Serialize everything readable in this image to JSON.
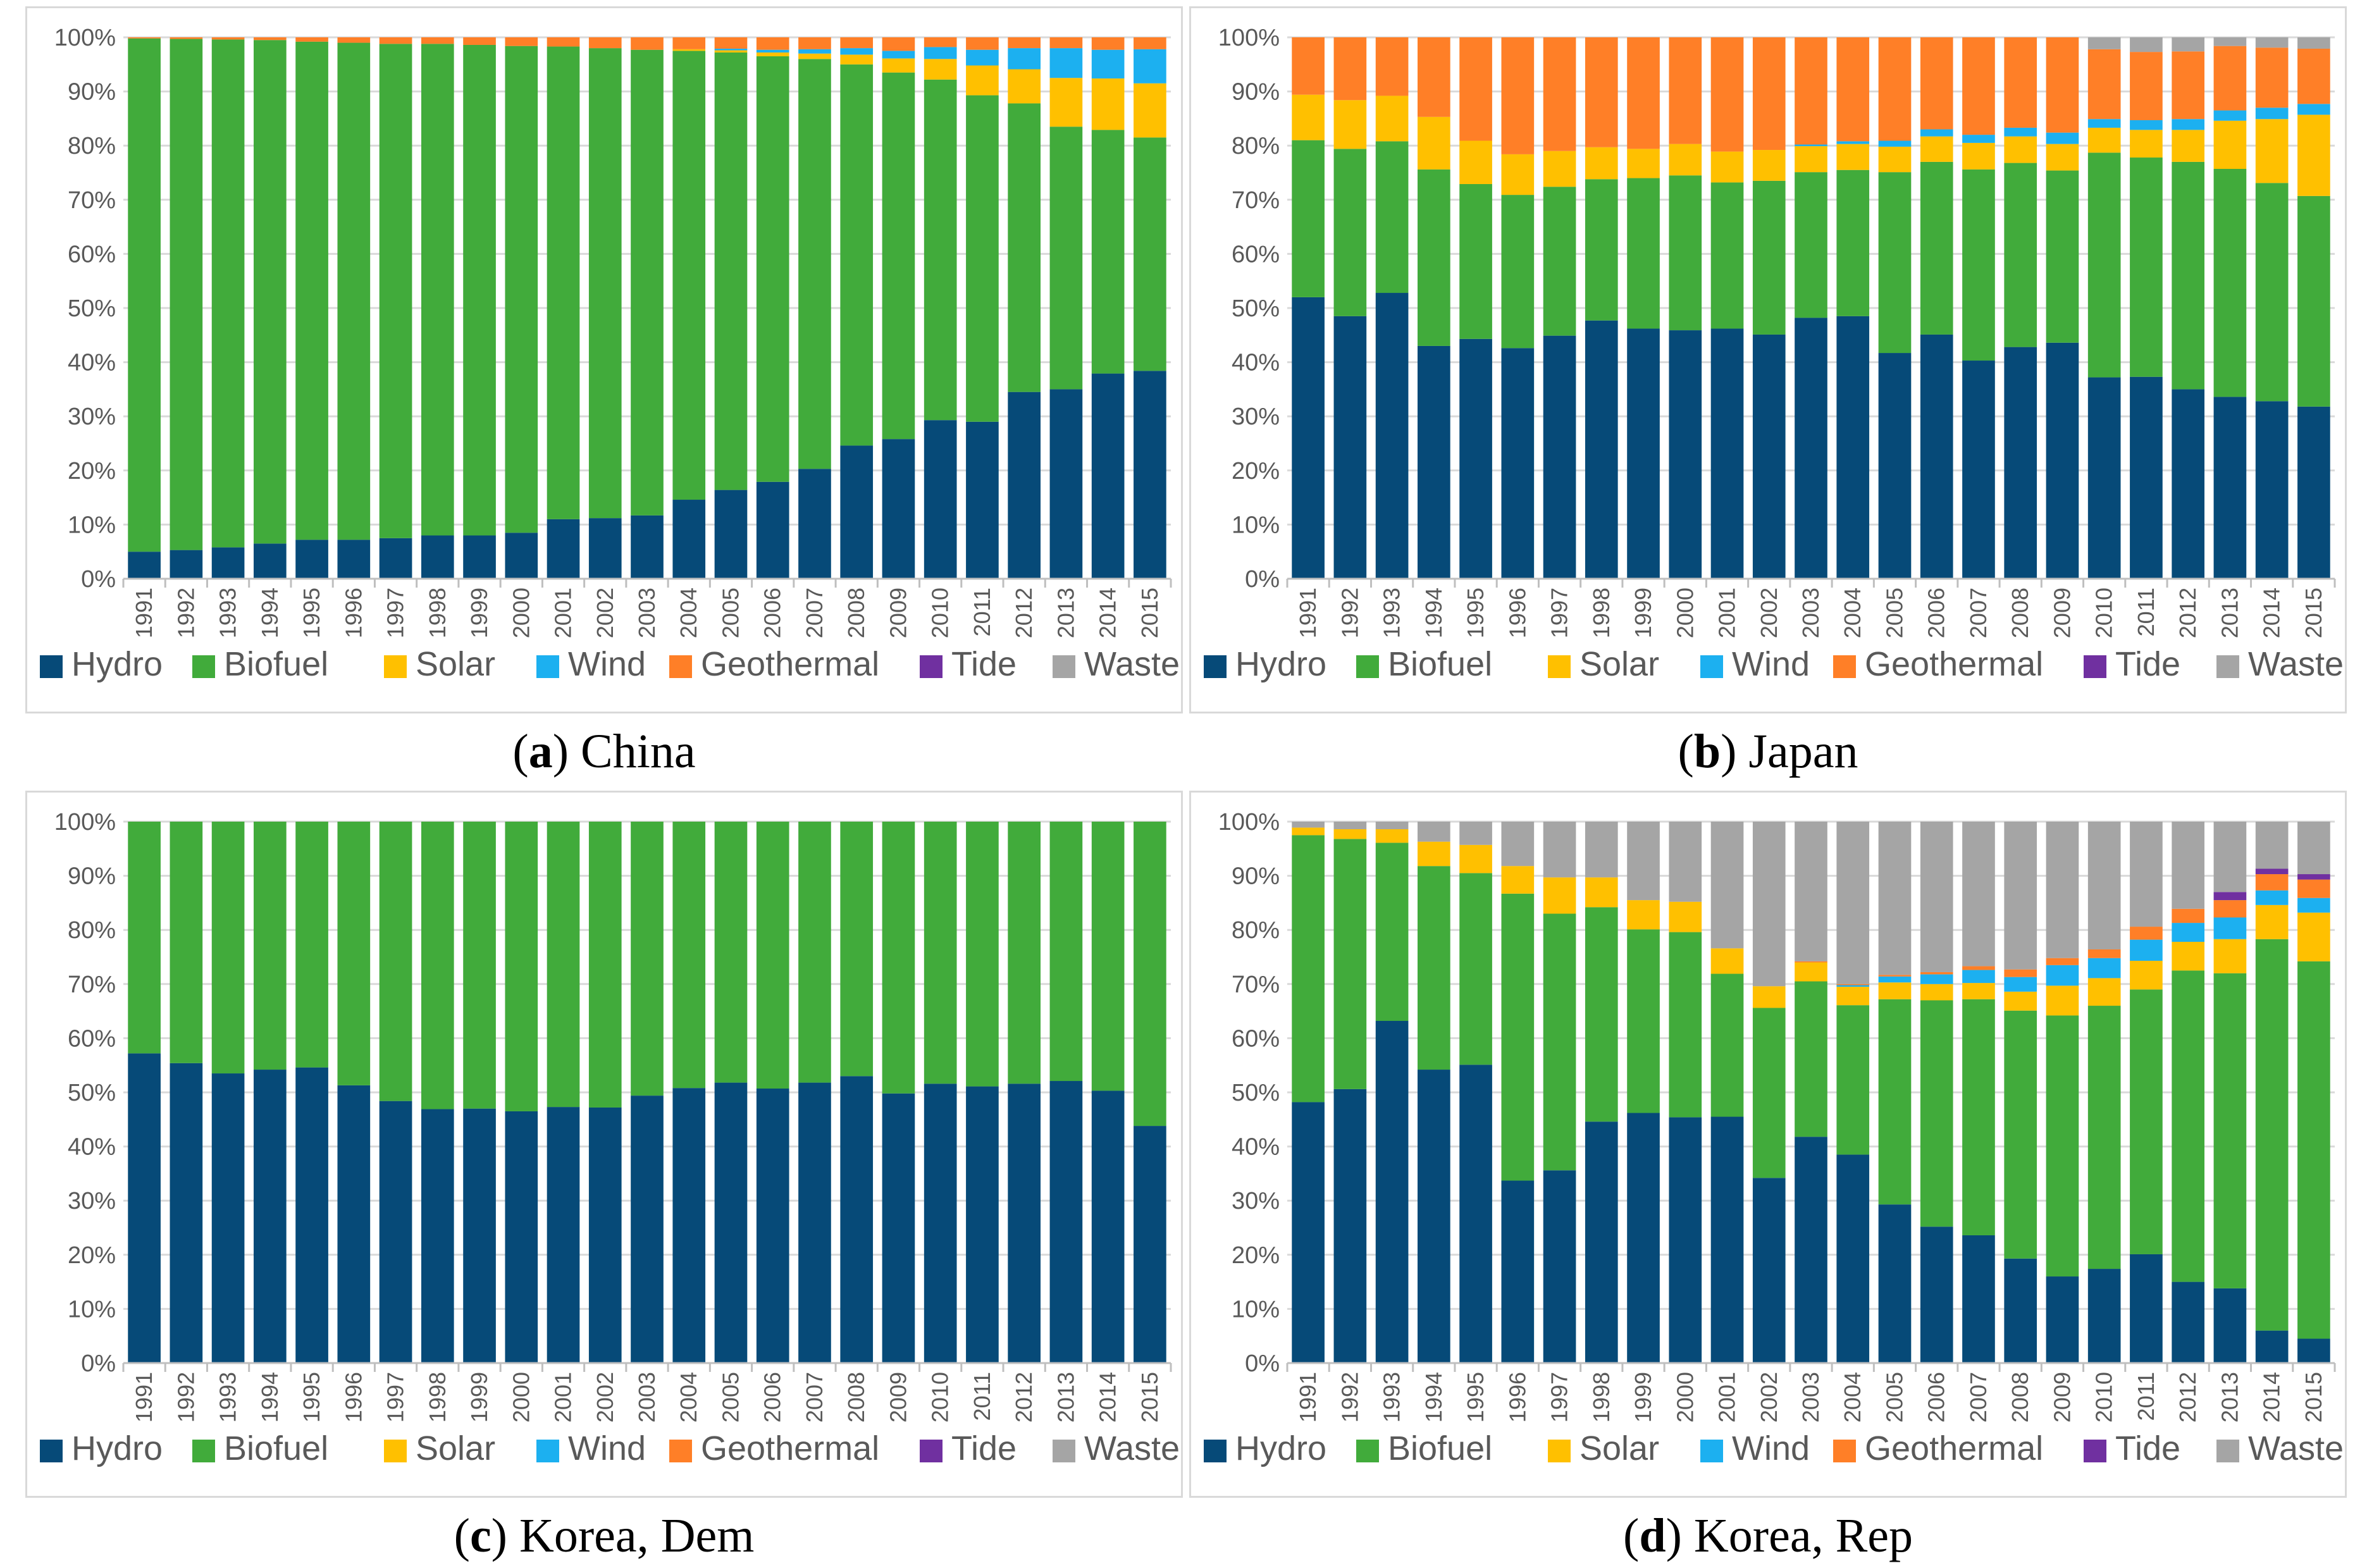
{
  "chart_data": [
    {
      "type": "bar",
      "stacked": true,
      "percent": true,
      "panel_letter": "a",
      "panel_title": "China",
      "categories": [
        "1991",
        "1992",
        "1993",
        "1994",
        "1995",
        "1996",
        "1997",
        "1998",
        "1999",
        "2000",
        "2001",
        "2002",
        "2003",
        "2004",
        "2005",
        "2006",
        "2007",
        "2008",
        "2009",
        "2010",
        "2011",
        "2012",
        "2013",
        "2014",
        "2015"
      ],
      "y_ticks": [
        "0%",
        "10%",
        "20%",
        "30%",
        "40%",
        "50%",
        "60%",
        "70%",
        "80%",
        "90%",
        "100%"
      ],
      "ylim": [
        0,
        100
      ],
      "legend_position": "bottom",
      "series": [
        {
          "name": "Hydro",
          "color": "#064A78",
          "values": [
            5,
            5.3,
            5.8,
            6.5,
            7.2,
            7.2,
            7.5,
            8,
            8,
            8.5,
            11,
            11.2,
            11.7,
            14.6,
            16.4,
            17.9,
            20.3,
            24.6,
            25.8,
            29.3,
            29,
            34.5,
            35,
            37.9,
            38.4
          ]
        },
        {
          "name": "Biofuel",
          "color": "#41AB3B",
          "values": [
            94.8,
            94.4,
            93.8,
            93,
            92,
            91.8,
            91.3,
            90.8,
            90.6,
            89.9,
            87.3,
            86.8,
            86,
            82.9,
            80.8,
            78.6,
            75.7,
            70.4,
            67.7,
            62.9,
            60.3,
            53.3,
            48.5,
            45,
            43.1
          ]
        },
        {
          "name": "Solar",
          "color": "#FFC000",
          "values": [
            0,
            0,
            0,
            0,
            0,
            0,
            0,
            0,
            0,
            0,
            0,
            0,
            0,
            0.3,
            0.4,
            0.7,
            1,
            1.8,
            2.6,
            3.8,
            5.5,
            6.3,
            9,
            9.5,
            10
          ]
        },
        {
          "name": "Wind",
          "color": "#1CB0F0",
          "values": [
            0,
            0,
            0,
            0,
            0,
            0,
            0,
            0,
            0,
            0,
            0,
            0,
            0,
            0,
            0.3,
            0.5,
            0.8,
            1.2,
            1.4,
            2.2,
            2.9,
            3.9,
            5.5,
            5.3,
            6.3
          ]
        },
        {
          "name": "Geothermal",
          "color": "#FF7F27",
          "values": [
            0.2,
            0.3,
            0.4,
            0.5,
            0.8,
            1,
            1.2,
            1.2,
            1.4,
            1.6,
            1.7,
            2,
            2.3,
            2.2,
            2.1,
            2.3,
            2.2,
            2,
            2.5,
            1.8,
            2.3,
            2,
            2,
            2.3,
            2.2
          ]
        },
        {
          "name": "Tide",
          "color": "#7030A0",
          "values": [
            0,
            0,
            0,
            0,
            0,
            0,
            0,
            0,
            0,
            0,
            0,
            0,
            0,
            0,
            0,
            0,
            0,
            0,
            0,
            0,
            0,
            0,
            0,
            0,
            0
          ]
        },
        {
          "name": "Waste",
          "color": "#A5A5A5",
          "values": [
            0,
            0,
            0,
            0,
            0,
            0,
            0,
            0,
            0,
            0,
            0,
            0,
            0,
            0,
            0,
            0,
            0,
            0,
            0,
            0,
            0,
            0,
            0,
            0,
            0
          ]
        }
      ]
    },
    {
      "type": "bar",
      "stacked": true,
      "percent": true,
      "panel_letter": "b",
      "panel_title": "Japan",
      "categories": [
        "1991",
        "1992",
        "1993",
        "1994",
        "1995",
        "1996",
        "1997",
        "1998",
        "1999",
        "2000",
        "2001",
        "2002",
        "2003",
        "2004",
        "2005",
        "2006",
        "2007",
        "2008",
        "2009",
        "2010",
        "2011",
        "2012",
        "2013",
        "2014",
        "2015"
      ],
      "y_ticks": [
        "0%",
        "10%",
        "20%",
        "30%",
        "40%",
        "50%",
        "60%",
        "70%",
        "80%",
        "90%",
        "100%"
      ],
      "ylim": [
        0,
        100
      ],
      "legend_position": "bottom",
      "series": [
        {
          "name": "Hydro",
          "color": "#064A78",
          "values": [
            52,
            48.5,
            52.8,
            43,
            44.3,
            42.6,
            44.9,
            47.7,
            46.2,
            45.9,
            46.2,
            45.1,
            48.2,
            48.5,
            41.7,
            45.1,
            40.3,
            42.8,
            43.6,
            37.2,
            37.3,
            35,
            33.6,
            32.8,
            31.8
          ]
        },
        {
          "name": "Biofuel",
          "color": "#41AB3B",
          "values": [
            29,
            30.9,
            28,
            32.6,
            28.6,
            28.3,
            27.5,
            26.1,
            27.8,
            28.6,
            27,
            28.4,
            26.9,
            27,
            33.4,
            31.9,
            35.3,
            34,
            31.8,
            41.5,
            40.5,
            42,
            42.1,
            40.3,
            38.9
          ]
        },
        {
          "name": "Solar",
          "color": "#FFC000",
          "values": [
            8.4,
            9,
            8.4,
            9.7,
            8,
            7.5,
            6.6,
            5.9,
            5.4,
            5.8,
            5.7,
            5.7,
            4.8,
            4.8,
            4.7,
            4.7,
            4.9,
            4.9,
            4.9,
            4.6,
            5.1,
            5.9,
            8.9,
            11.8,
            15
          ]
        },
        {
          "name": "Wind",
          "color": "#1CB0F0",
          "values": [
            0,
            0,
            0,
            0,
            0,
            0,
            0,
            0,
            0,
            0,
            0,
            0,
            0.3,
            0.5,
            1.1,
            1.3,
            1.5,
            1.6,
            2.1,
            1.6,
            1.8,
            2,
            1.9,
            2.1,
            2
          ]
        },
        {
          "name": "Geothermal",
          "color": "#FF7F27",
          "values": [
            10.6,
            11.6,
            10.8,
            14.7,
            19.1,
            21.6,
            21,
            20.3,
            20.6,
            19.7,
            21.1,
            20.8,
            19.8,
            19.2,
            19.1,
            17,
            18,
            16.7,
            17.6,
            12.9,
            12.6,
            12.5,
            11.9,
            11.1,
            10.2
          ]
        },
        {
          "name": "Tide",
          "color": "#7030A0",
          "values": [
            0,
            0,
            0,
            0,
            0,
            0,
            0,
            0,
            0,
            0,
            0,
            0,
            0,
            0,
            0,
            0,
            0,
            0,
            0,
            0,
            0,
            0,
            0,
            0,
            0
          ]
        },
        {
          "name": "Waste",
          "color": "#A5A5A5",
          "values": [
            0,
            0,
            0,
            0,
            0,
            0,
            0,
            0,
            0,
            0,
            0,
            0,
            0,
            0,
            0,
            0,
            0,
            0,
            0,
            2.2,
            2.7,
            2.6,
            1.6,
            1.9,
            2.1
          ]
        }
      ]
    },
    {
      "type": "bar",
      "stacked": true,
      "percent": true,
      "panel_letter": "c",
      "panel_title": "Korea, Dem",
      "categories": [
        "1991",
        "1992",
        "1993",
        "1994",
        "1995",
        "1996",
        "1997",
        "1998",
        "1999",
        "2000",
        "2001",
        "2002",
        "2003",
        "2004",
        "2005",
        "2006",
        "2007",
        "2008",
        "2009",
        "2010",
        "2011",
        "2012",
        "2013",
        "2014",
        "2015"
      ],
      "y_ticks": [
        "0%",
        "10%",
        "20%",
        "30%",
        "40%",
        "50%",
        "60%",
        "70%",
        "80%",
        "90%",
        "100%"
      ],
      "ylim": [
        0,
        100
      ],
      "legend_position": "bottom",
      "series": [
        {
          "name": "Hydro",
          "color": "#064A78",
          "values": [
            57.2,
            55.4,
            53.5,
            54.2,
            54.6,
            51.3,
            48.4,
            46.9,
            47,
            46.5,
            47.3,
            47.2,
            49.4,
            50.8,
            51.8,
            50.7,
            51.8,
            53,
            49.8,
            51.6,
            51.1,
            51.6,
            52.1,
            50.3,
            43.8
          ]
        },
        {
          "name": "Biofuel",
          "color": "#41AB3B",
          "values": [
            42.8,
            44.6,
            46.5,
            45.8,
            45.4,
            48.7,
            51.6,
            53.1,
            53,
            53.5,
            52.7,
            52.8,
            50.6,
            49.2,
            48.2,
            49.3,
            48.2,
            47,
            50.2,
            48.4,
            48.9,
            48.4,
            47.9,
            49.7,
            56.2
          ]
        },
        {
          "name": "Solar",
          "color": "#FFC000",
          "values": [
            0,
            0,
            0,
            0,
            0,
            0,
            0,
            0,
            0,
            0,
            0,
            0,
            0,
            0,
            0,
            0,
            0,
            0,
            0,
            0,
            0,
            0,
            0,
            0,
            0
          ]
        },
        {
          "name": "Wind",
          "color": "#1CB0F0",
          "values": [
            0,
            0,
            0,
            0,
            0,
            0,
            0,
            0,
            0,
            0,
            0,
            0,
            0,
            0,
            0,
            0,
            0,
            0,
            0,
            0,
            0,
            0,
            0,
            0,
            0
          ]
        },
        {
          "name": "Geothermal",
          "color": "#FF7F27",
          "values": [
            0,
            0,
            0,
            0,
            0,
            0,
            0,
            0,
            0,
            0,
            0,
            0,
            0,
            0,
            0,
            0,
            0,
            0,
            0,
            0,
            0,
            0,
            0,
            0,
            0
          ]
        },
        {
          "name": "Tide",
          "color": "#7030A0",
          "values": [
            0,
            0,
            0,
            0,
            0,
            0,
            0,
            0,
            0,
            0,
            0,
            0,
            0,
            0,
            0,
            0,
            0,
            0,
            0,
            0,
            0,
            0,
            0,
            0,
            0
          ]
        },
        {
          "name": "Waste",
          "color": "#A5A5A5",
          "values": [
            0,
            0,
            0,
            0,
            0,
            0,
            0,
            0,
            0,
            0,
            0,
            0,
            0,
            0,
            0,
            0,
            0,
            0,
            0,
            0,
            0,
            0,
            0,
            0,
            0
          ]
        }
      ]
    },
    {
      "type": "bar",
      "stacked": true,
      "percent": true,
      "panel_letter": "d",
      "panel_title": "Korea, Rep",
      "categories": [
        "1991",
        "1992",
        "1993",
        "1994",
        "1995",
        "1996",
        "1997",
        "1998",
        "1999",
        "2000",
        "2001",
        "2002",
        "2003",
        "2004",
        "2005",
        "2006",
        "2007",
        "2008",
        "2009",
        "2010",
        "2011",
        "2012",
        "2013",
        "2014",
        "2015"
      ],
      "y_ticks": [
        "0%",
        "10%",
        "20%",
        "30%",
        "40%",
        "50%",
        "60%",
        "70%",
        "80%",
        "90%",
        "100%"
      ],
      "ylim": [
        0,
        100
      ],
      "legend_position": "bottom",
      "series": [
        {
          "name": "Hydro",
          "color": "#064A78",
          "values": [
            48.2,
            50.6,
            63.2,
            54.2,
            55.1,
            33.7,
            35.6,
            44.6,
            46.2,
            45.4,
            45.5,
            34.2,
            41.8,
            38.5,
            29.3,
            25.2,
            23.6,
            19.3,
            16,
            17.4,
            20.1,
            15,
            13.8,
            6,
            4.5
          ]
        },
        {
          "name": "Biofuel",
          "color": "#41AB3B",
          "values": [
            49.3,
            46.2,
            32.9,
            37.6,
            35.4,
            53,
            47.4,
            39.6,
            33.9,
            34.2,
            26.4,
            31.4,
            28.7,
            27.6,
            37.9,
            41.8,
            43.6,
            45.8,
            48.2,
            48.6,
            48.9,
            57.5,
            58.2,
            72.3,
            69.7
          ]
        },
        {
          "name": "Solar",
          "color": "#FFC000",
          "values": [
            1.4,
            1.8,
            2.5,
            4.5,
            5.2,
            5.1,
            6.7,
            5.5,
            5.4,
            5.6,
            4.7,
            4,
            3.5,
            3.4,
            3.1,
            3,
            3,
            3.5,
            5.5,
            5.1,
            5.3,
            5.3,
            6.3,
            6.3,
            9
          ]
        },
        {
          "name": "Wind",
          "color": "#1CB0F0",
          "values": [
            0,
            0,
            0,
            0,
            0,
            0,
            0,
            0,
            0,
            0,
            0,
            0,
            0,
            0.3,
            1.1,
            1.8,
            2.4,
            2.7,
            3.8,
            3.7,
            3.9,
            3.5,
            4,
            2.7,
            2.7
          ]
        },
        {
          "name": "Geothermal",
          "color": "#FF7F27",
          "values": [
            0,
            0,
            0,
            0,
            0,
            0,
            0,
            0,
            0,
            0,
            0,
            0,
            0.2,
            0.2,
            0.3,
            0.4,
            0.7,
            1.4,
            1.3,
            1.6,
            2.4,
            2.6,
            3.2,
            3,
            3.4
          ]
        },
        {
          "name": "Tide",
          "color": "#7030A0",
          "values": [
            0,
            0,
            0,
            0,
            0,
            0,
            0,
            0,
            0,
            0,
            0,
            0,
            0,
            0,
            0,
            0,
            0,
            0,
            0,
            0,
            0,
            0,
            1.5,
            1,
            1
          ]
        },
        {
          "name": "Waste",
          "color": "#A5A5A5",
          "values": [
            1.1,
            1.4,
            1.4,
            3.7,
            4.3,
            8.2,
            10.3,
            10.3,
            14.5,
            14.8,
            23.4,
            30.4,
            25.8,
            30,
            28.3,
            27.8,
            26.7,
            27.3,
            25.2,
            23.6,
            19.4,
            16.1,
            13,
            8.7,
            9.7
          ]
        }
      ]
    }
  ]
}
